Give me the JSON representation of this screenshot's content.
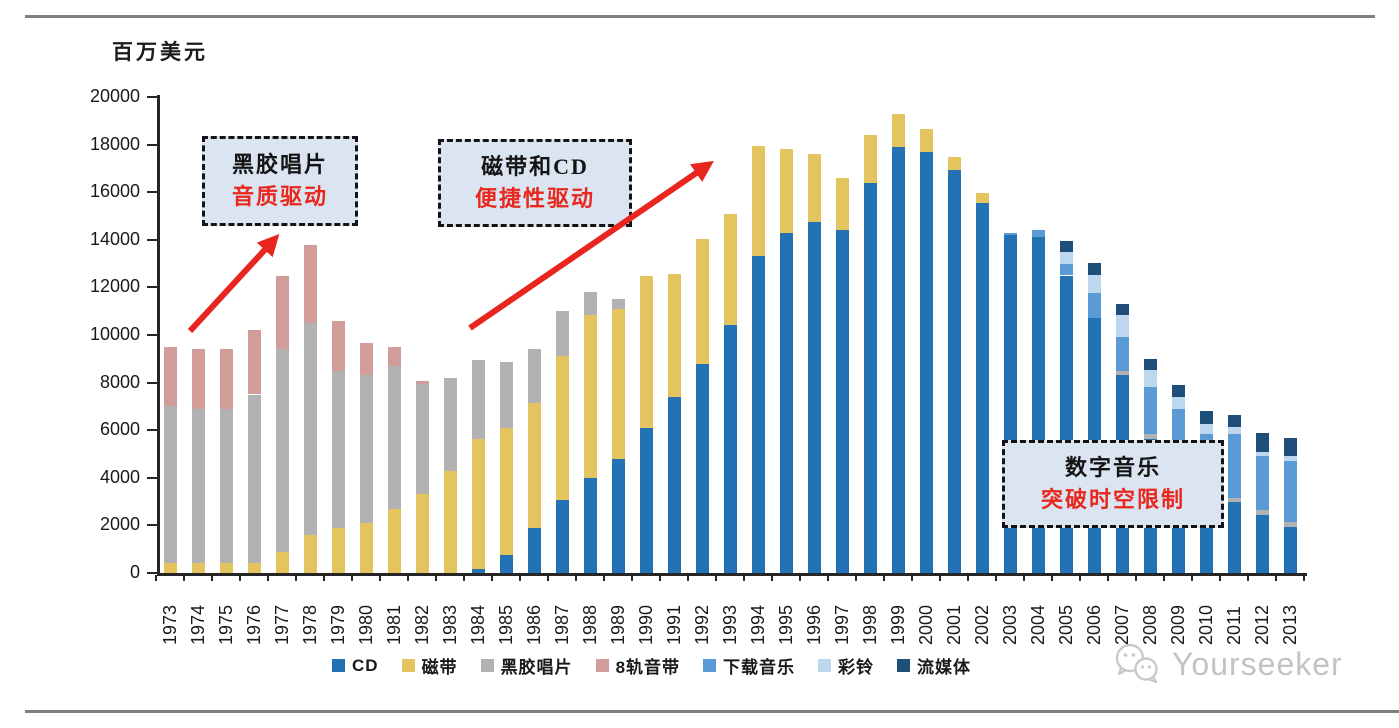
{
  "rules": {
    "top": true,
    "bottom": true
  },
  "annotations": [
    {
      "line1": "黑胶唱片",
      "line2": "音质驱动"
    },
    {
      "line1": "磁带和CD",
      "line2": "便捷性驱动"
    },
    {
      "line1": "数字音乐",
      "line2": "突破时空限制"
    }
  ],
  "watermark": {
    "text": "Yourseeker"
  },
  "colors": {
    "axis": "#262626",
    "arrow_red": "#e8251e",
    "callout_fill": "#dbe5f1",
    "callout_text_red": "#e8281e",
    "watermark_gray": "#c3c3c3",
    "divider_gray": "#7f7f7f"
  },
  "chart_data": {
    "type": "bar",
    "stacked": true,
    "title": "",
    "xlabel": "",
    "ylabel": "百万美元",
    "ylim": [
      0,
      20000
    ],
    "ytick_interval": 2000,
    "grid": false,
    "legend_position": "bottom",
    "categories": [
      "1973",
      "1974",
      "1975",
      "1976",
      "1977",
      "1978",
      "1979",
      "1980",
      "1981",
      "1982",
      "1983",
      "1984",
      "1985",
      "1986",
      "1987",
      "1988",
      "1989",
      "1990",
      "1991",
      "1992",
      "1993",
      "1994",
      "1995",
      "1996",
      "1997",
      "1998",
      "1999",
      "2000",
      "2001",
      "2002",
      "2003",
      "2004",
      "2005",
      "2006",
      "2007",
      "2008",
      "2009",
      "2010",
      "2011",
      "2012",
      "2013"
    ],
    "series": [
      {
        "name": "CD",
        "key": "cd",
        "color": "#2272b4",
        "values": [
          0,
          0,
          0,
          0,
          0,
          0,
          0,
          0,
          0,
          0,
          0,
          150,
          750,
          1880,
          3070,
          4000,
          4800,
          6100,
          7400,
          8800,
          10400,
          13300,
          14300,
          14750,
          14400,
          16400,
          17900,
          17700,
          16950,
          15550,
          14200,
          14100,
          12500,
          10700,
          8300,
          5650,
          4800,
          3500,
          3000,
          2450,
          1950
        ]
      },
      {
        "name": "磁带",
        "key": "cassette",
        "color": "#e3c45f",
        "values": [
          400,
          400,
          400,
          400,
          900,
          1600,
          1900,
          2100,
          2700,
          3300,
          4300,
          5500,
          5330,
          5250,
          6030,
          6850,
          6300,
          6400,
          5150,
          5250,
          4700,
          4650,
          3500,
          2850,
          2200,
          2000,
          1400,
          950,
          550,
          400,
          0,
          0,
          0,
          0,
          0,
          0,
          0,
          0,
          0,
          0,
          0
        ]
      },
      {
        "name": "黑胶唱片",
        "key": "vinyl",
        "color": "#b2b2b2",
        "values": [
          6600,
          6500,
          6500,
          7100,
          8500,
          8900,
          6600,
          6200,
          6000,
          4650,
          3900,
          3300,
          2770,
          2270,
          1900,
          950,
          400,
          0,
          0,
          0,
          0,
          0,
          0,
          0,
          0,
          0,
          0,
          0,
          0,
          0,
          0,
          0,
          0,
          0,
          200,
          200,
          210,
          150,
          150,
          200,
          200
        ]
      },
      {
        "name": "8轨音带",
        "key": "eight-track",
        "color": "#d29c99",
        "values": [
          2500,
          2500,
          2500,
          2700,
          3100,
          3300,
          2100,
          1350,
          800,
          100,
          0,
          0,
          0,
          0,
          0,
          0,
          0,
          0,
          0,
          0,
          0,
          0,
          0,
          0,
          0,
          0,
          0,
          0,
          0,
          0,
          0,
          0,
          0,
          0,
          0,
          0,
          0,
          0,
          0,
          0,
          0
        ]
      },
      {
        "name": "下载音乐",
        "key": "download",
        "color": "#5b9bd5",
        "values": [
          0,
          0,
          0,
          0,
          0,
          0,
          0,
          0,
          0,
          0,
          0,
          0,
          0,
          0,
          0,
          0,
          0,
          0,
          0,
          0,
          0,
          0,
          0,
          0,
          0,
          0,
          0,
          0,
          0,
          0,
          100,
          300,
          490,
          1050,
          1400,
          1960,
          1890,
          2200,
          2700,
          2250,
          2550
        ]
      },
      {
        "name": "彩铃",
        "key": "ringtone",
        "color": "#bdd7ee",
        "values": [
          0,
          0,
          0,
          0,
          0,
          0,
          0,
          0,
          0,
          0,
          0,
          0,
          0,
          0,
          0,
          0,
          0,
          0,
          0,
          0,
          0,
          0,
          0,
          0,
          0,
          0,
          0,
          0,
          0,
          0,
          0,
          0,
          490,
          770,
          950,
          700,
          490,
          420,
          280,
          200,
          200
        ]
      },
      {
        "name": "流媒体",
        "key": "streaming",
        "color": "#1f4e79",
        "values": [
          0,
          0,
          0,
          0,
          0,
          0,
          0,
          0,
          0,
          0,
          0,
          0,
          0,
          0,
          0,
          0,
          0,
          0,
          0,
          0,
          0,
          0,
          0,
          0,
          0,
          0,
          0,
          0,
          0,
          0,
          0,
          0,
          460,
          520,
          470,
          490,
          520,
          520,
          520,
          800,
          770
        ]
      }
    ]
  }
}
